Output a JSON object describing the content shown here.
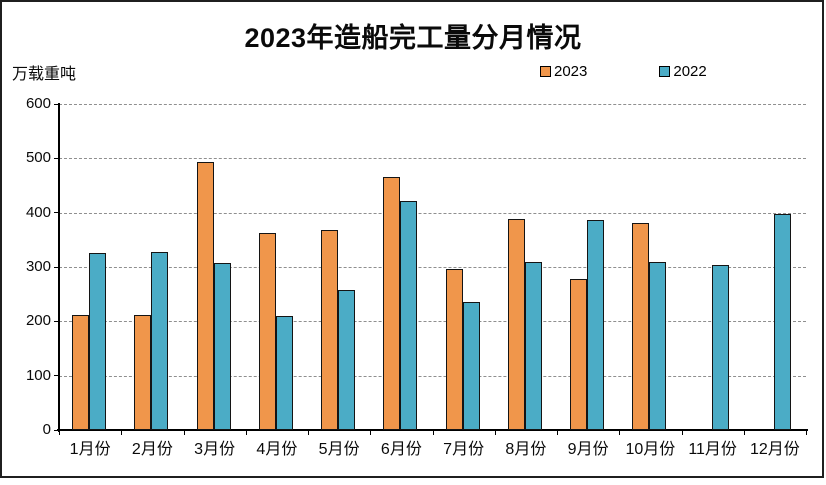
{
  "header": {
    "title": "2023年造船完工量分月情况",
    "unit_label": "万载重吨"
  },
  "legend": {
    "entries": [
      {
        "label": "2023",
        "color": "#F0964B"
      },
      {
        "label": "2022",
        "color": "#4BACC6"
      }
    ]
  },
  "chart_data": {
    "type": "bar",
    "title": "2023年造船完工量分月情况",
    "ylabel": "万载重吨",
    "xlabel": "",
    "categories": [
      "1月份",
      "2月份",
      "3月份",
      "4月份",
      "5月份",
      "6月份",
      "7月份",
      "8月份",
      "9月份",
      "10月份",
      "11月份",
      "12月份"
    ],
    "series": [
      {
        "name": "2023",
        "color": "#F0964B",
        "values": [
          211,
          212,
          494,
          363,
          368,
          465,
          296,
          389,
          277,
          381,
          null,
          null
        ]
      },
      {
        "name": "2022",
        "color": "#4BACC6",
        "values": [
          326,
          327,
          308,
          210,
          257,
          422,
          236,
          310,
          386,
          309,
          304,
          397
        ]
      }
    ],
    "ylim": [
      0,
      600
    ],
    "yticks": [
      0,
      100,
      200,
      300,
      400,
      500,
      600
    ],
    "grid": true,
    "gridline_style": "dashed",
    "legend_position": "top",
    "colors": {
      "bar_border": "#141414",
      "gridline": "#8f8f8f",
      "axis": "#000000",
      "background": "#ffffff"
    }
  }
}
